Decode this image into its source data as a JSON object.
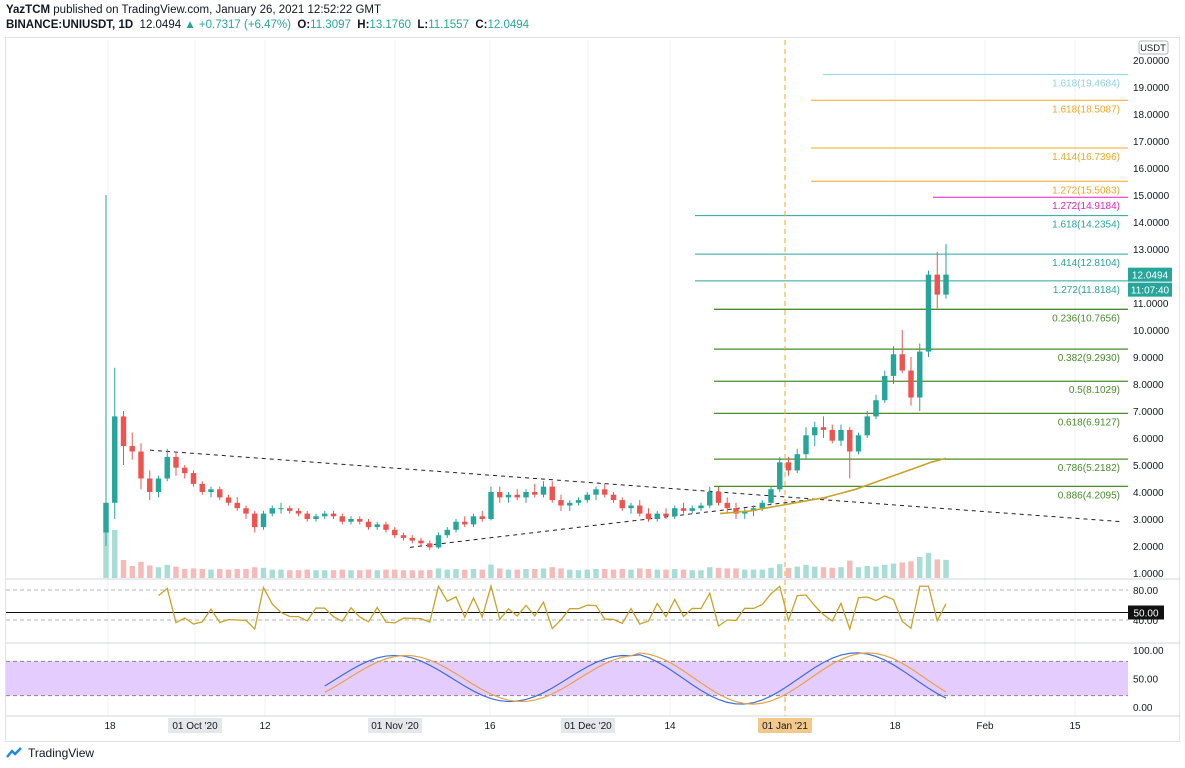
{
  "header": {
    "publisher_line_bold": "YazTCM",
    "publisher_line_rest": " published on TradingView.com, January 26, 2021 12:52:22 GMT",
    "symbol": "BINANCE:UNIUSDT, 1D",
    "last": "12.0494",
    "change": "+0.7317 (+6.47%)",
    "o_label": "O:",
    "o": "11.3097",
    "h_label": "H:",
    "h": "13.1760",
    "l_label": "L:",
    "l": "11.1557",
    "c_label": "C:",
    "c": "12.0494"
  },
  "footer": {
    "brand": "TradingView"
  },
  "price_axis": {
    "currency": "USDT",
    "ticks": [
      "20.0000",
      "19.0000",
      "18.0000",
      "17.0000",
      "16.0000",
      "15.0000",
      "14.0000",
      "13.0000",
      "12.0000",
      "11.0000",
      "10.0000",
      "9.0000",
      "8.0000",
      "7.0000",
      "6.0000",
      "5.0000",
      "4.0000",
      "3.0000",
      "2.0000",
      "1.0000"
    ],
    "last_price_tag": "12.0494",
    "countdown_tag": "11:07:40"
  },
  "rsi_axis": {
    "ticks": [
      "80.00",
      "40.00"
    ],
    "level_tag": "50.00"
  },
  "stoch_axis": {
    "ticks": [
      "100.00",
      "50.00",
      "0.00"
    ]
  },
  "time_axis": {
    "labels": [
      "18",
      "01 Oct '20",
      "12",
      "01 Nov '20",
      "16",
      "01 Dec '20",
      "14",
      "01 Jan '21",
      "18",
      "Feb",
      "15"
    ],
    "boxed": [
      "01 Oct '20",
      "01 Nov '20",
      "01 Dec '20"
    ],
    "highlighted": "01 Jan '21"
  },
  "fib_levels": [
    {
      "label": "1.618(19.4684)",
      "price": 19.4684,
      "color": "#8fd3e8"
    },
    {
      "label": "1.618(18.5087)",
      "price": 18.5087,
      "color": "#f5a623"
    },
    {
      "label": "1.414(16.7396)",
      "price": 16.7396,
      "color": "#f5a623"
    },
    {
      "label": "1.272(15.5083)",
      "price": 15.5083,
      "color": "#f5a623"
    },
    {
      "label": "1.272(14.9184)",
      "price": 14.9184,
      "color": "#e91ec8"
    },
    {
      "label": "1.618(14.2354)",
      "price": 14.2354,
      "color": "#26a69a"
    },
    {
      "label": "1.414(12.8104)",
      "price": 12.8104,
      "color": "#26a69a"
    },
    {
      "label": "1.272(11.8184)",
      "price": 11.8184,
      "color": "#26a69a"
    },
    {
      "label": "0.236(10.7656)",
      "price": 10.7656,
      "color": "#4a8c2a"
    },
    {
      "label": "0.382(9.2930)",
      "price": 9.293,
      "color": "#4a8c2a"
    },
    {
      "label": "0.5(8.1029)",
      "price": 8.1029,
      "color": "#4a8c2a"
    },
    {
      "label": "0.618(6.9127)",
      "price": 6.9127,
      "color": "#4a8c2a"
    },
    {
      "label": "0.786(5.2182)",
      "price": 5.2182,
      "color": "#4a8c2a"
    },
    {
      "label": "0.886(4.2095)",
      "price": 4.2095,
      "color": "#4a8c2a"
    }
  ],
  "colors": {
    "up": "#26a69a",
    "down": "#ef5350",
    "ma": "#c9a227",
    "rsi": "#c9a227",
    "stoch_k": "#3b6fd8",
    "stoch_d": "#e8a24a",
    "stoch_band": "#e4ccff"
  },
  "chart_data": {
    "type": "candlestick",
    "title": "",
    "price_axis_ticks": [
      1,
      2,
      3,
      4,
      5,
      6,
      7,
      8,
      9,
      10,
      11,
      12,
      13,
      14,
      15,
      16,
      17,
      18,
      19,
      20
    ],
    "candles_ohlc": [
      [
        2.5,
        15.0,
        2.0,
        3.6
      ],
      [
        3.6,
        8.6,
        3.0,
        6.8
      ],
      [
        6.8,
        7.0,
        5.0,
        5.7
      ],
      [
        5.7,
        6.2,
        5.2,
        5.5
      ],
      [
        5.5,
        5.8,
        4.1,
        4.5
      ],
      [
        4.5,
        4.8,
        3.7,
        4.0
      ],
      [
        4.0,
        4.6,
        3.8,
        4.5
      ],
      [
        4.5,
        5.6,
        4.4,
        5.3
      ],
      [
        5.3,
        5.5,
        4.6,
        4.9
      ],
      [
        4.9,
        5.0,
        4.5,
        4.7
      ],
      [
        4.7,
        4.8,
        4.2,
        4.3
      ],
      [
        4.3,
        4.4,
        3.9,
        4.0
      ],
      [
        4.0,
        4.2,
        3.8,
        4.1
      ],
      [
        4.1,
        4.2,
        3.7,
        3.8
      ],
      [
        3.8,
        3.9,
        3.5,
        3.6
      ],
      [
        3.6,
        3.8,
        3.3,
        3.4
      ],
      [
        3.4,
        3.5,
        3.0,
        3.2
      ],
      [
        3.2,
        3.3,
        2.5,
        2.7
      ],
      [
        2.7,
        3.3,
        2.6,
        3.2
      ],
      [
        3.2,
        3.5,
        3.1,
        3.4
      ],
      [
        3.4,
        3.6,
        3.2,
        3.4
      ],
      [
        3.4,
        3.5,
        3.2,
        3.3
      ],
      [
        3.3,
        3.4,
        3.1,
        3.2
      ],
      [
        3.2,
        3.3,
        2.9,
        3.0
      ],
      [
        3.0,
        3.2,
        2.9,
        3.1
      ],
      [
        3.1,
        3.3,
        3.0,
        3.2
      ],
      [
        3.2,
        3.3,
        3.0,
        3.1
      ],
      [
        3.1,
        3.2,
        2.8,
        2.9
      ],
      [
        2.9,
        3.1,
        2.8,
        3.0
      ],
      [
        3.0,
        3.1,
        2.8,
        2.9
      ],
      [
        2.9,
        3.0,
        2.6,
        2.7
      ],
      [
        2.7,
        2.9,
        2.6,
        2.8
      ],
      [
        2.8,
        2.9,
        2.5,
        2.6
      ],
      [
        2.6,
        2.7,
        2.3,
        2.4
      ],
      [
        2.4,
        2.5,
        2.2,
        2.3
      ],
      [
        2.3,
        2.4,
        2.1,
        2.2
      ],
      [
        2.2,
        2.3,
        2.0,
        2.1
      ],
      [
        2.1,
        2.2,
        1.85,
        1.95
      ],
      [
        1.95,
        2.5,
        1.9,
        2.4
      ],
      [
        2.4,
        2.7,
        2.3,
        2.6
      ],
      [
        2.6,
        3.0,
        2.5,
        2.9
      ],
      [
        2.9,
        3.1,
        2.7,
        2.8
      ],
      [
        2.8,
        3.2,
        2.7,
        3.1
      ],
      [
        3.1,
        3.3,
        2.9,
        3.0
      ],
      [
        3.0,
        4.2,
        2.95,
        4.0
      ],
      [
        4.0,
        4.2,
        3.6,
        3.8
      ],
      [
        3.8,
        4.0,
        3.6,
        3.9
      ],
      [
        3.9,
        4.1,
        3.7,
        3.8
      ],
      [
        3.8,
        4.1,
        3.6,
        4.0
      ],
      [
        4.0,
        4.3,
        3.8,
        3.9
      ],
      [
        3.9,
        4.4,
        3.8,
        4.2
      ],
      [
        4.2,
        4.4,
        3.6,
        3.7
      ],
      [
        3.7,
        3.9,
        3.3,
        3.5
      ],
      [
        3.5,
        3.7,
        3.3,
        3.6
      ],
      [
        3.6,
        3.8,
        3.5,
        3.7
      ],
      [
        3.7,
        4.0,
        3.6,
        3.9
      ],
      [
        3.9,
        4.2,
        3.7,
        4.1
      ],
      [
        4.1,
        4.3,
        3.8,
        3.9
      ],
      [
        3.9,
        4.0,
        3.6,
        3.7
      ],
      [
        3.7,
        3.8,
        3.3,
        3.4
      ],
      [
        3.4,
        3.6,
        3.2,
        3.5
      ],
      [
        3.5,
        3.7,
        3.1,
        3.2
      ],
      [
        3.2,
        3.4,
        2.9,
        3.0
      ],
      [
        3.0,
        3.3,
        2.9,
        3.2
      ],
      [
        3.2,
        3.4,
        3.0,
        3.1
      ],
      [
        3.1,
        3.5,
        3.0,
        3.4
      ],
      [
        3.4,
        3.6,
        3.2,
        3.3
      ],
      [
        3.3,
        3.5,
        3.2,
        3.4
      ],
      [
        3.4,
        3.6,
        3.3,
        3.5
      ],
      [
        3.5,
        4.2,
        3.4,
        4.0
      ],
      [
        4.0,
        4.2,
        3.5,
        3.6
      ],
      [
        3.6,
        3.8,
        3.2,
        3.4
      ],
      [
        3.4,
        3.6,
        3.0,
        3.2
      ],
      [
        3.2,
        3.4,
        3.0,
        3.3
      ],
      [
        3.3,
        3.5,
        3.1,
        3.4
      ],
      [
        3.4,
        3.7,
        3.3,
        3.6
      ],
      [
        3.6,
        4.2,
        3.5,
        4.1
      ],
      [
        4.1,
        5.3,
        4.0,
        5.1
      ],
      [
        5.1,
        5.3,
        4.6,
        4.8
      ],
      [
        4.8,
        5.6,
        4.7,
        5.4
      ],
      [
        5.4,
        6.4,
        5.2,
        6.1
      ],
      [
        6.1,
        6.6,
        5.7,
        6.4
      ],
      [
        6.4,
        6.8,
        6.0,
        6.3
      ],
      [
        6.3,
        6.5,
        5.8,
        5.9
      ],
      [
        5.9,
        6.5,
        5.7,
        6.3
      ],
      [
        6.3,
        6.4,
        4.5,
        5.5
      ],
      [
        5.5,
        6.2,
        5.4,
        6.1
      ],
      [
        6.1,
        7.0,
        6.0,
        6.8
      ],
      [
        6.8,
        7.6,
        6.7,
        7.4
      ],
      [
        7.4,
        8.5,
        7.3,
        8.3
      ],
      [
        8.3,
        9.4,
        8.0,
        9.1
      ],
      [
        9.1,
        10.0,
        8.4,
        8.5
      ],
      [
        8.5,
        9.0,
        7.2,
        7.5
      ],
      [
        7.5,
        9.5,
        7.0,
        9.2
      ],
      [
        9.2,
        12.2,
        9.0,
        12.05
      ],
      [
        12.05,
        12.9,
        10.8,
        11.31
      ],
      [
        11.31,
        13.18,
        11.16,
        12.05
      ]
    ],
    "moving_average_segment": [
      [
        3.2,
        3.25,
        3.3,
        3.4,
        3.5,
        3.6,
        3.7,
        3.8,
        3.95,
        4.1,
        4.3,
        4.5,
        4.7,
        4.9,
        5.1,
        5.25
      ]
    ],
    "rsi_levels": [
      80,
      50,
      40
    ],
    "stochastic_levels": [
      100,
      80,
      50,
      20,
      0
    ]
  }
}
